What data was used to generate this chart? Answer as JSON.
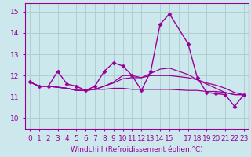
{
  "background_color": "#cce8ec",
  "grid_color": "#aacccc",
  "line_color": "#990099",
  "xlabel": "Windchill (Refroidissement éolien,°C)",
  "ylim": [
    9.5,
    15.4
  ],
  "xlim": [
    -0.5,
    23.5
  ],
  "yticks": [
    10,
    11,
    12,
    13,
    14,
    15
  ],
  "xtick_vals": [
    0,
    1,
    2,
    3,
    4,
    5,
    6,
    7,
    8,
    9,
    10,
    11,
    12,
    13,
    14,
    15,
    17,
    18,
    19,
    20,
    21,
    22,
    23
  ],
  "xtick_labels": [
    "0",
    "1",
    "2",
    "3",
    "4",
    "5",
    "6",
    "7",
    "8",
    "9",
    "10",
    "11",
    "12",
    "13",
    "14",
    "15",
    "17",
    "18",
    "19",
    "20",
    "21",
    "22",
    "23"
  ],
  "series": [
    {
      "x": [
        0,
        1,
        2,
        3,
        4,
        5,
        6,
        7,
        8,
        9,
        10,
        11,
        12,
        13,
        14,
        15,
        17,
        18,
        19,
        20,
        21,
        22,
        23
      ],
      "y": [
        11.7,
        11.5,
        11.5,
        12.2,
        11.6,
        11.5,
        11.3,
        11.5,
        12.2,
        12.6,
        12.45,
        12.0,
        11.3,
        12.2,
        14.4,
        14.9,
        13.5,
        11.9,
        11.2,
        11.15,
        11.1,
        10.55,
        11.1
      ],
      "marker": "D",
      "markersize": 2.5,
      "linewidth": 1.0
    },
    {
      "x": [
        0,
        1,
        2,
        3,
        4,
        5,
        6,
        7,
        8,
        9,
        10,
        11,
        12,
        13,
        14,
        15,
        17,
        18,
        19,
        20,
        21,
        22,
        23
      ],
      "y": [
        11.7,
        11.5,
        11.5,
        11.45,
        11.4,
        11.3,
        11.3,
        11.35,
        11.35,
        11.4,
        11.4,
        11.35,
        11.35,
        11.35,
        11.35,
        11.35,
        11.3,
        11.3,
        11.25,
        11.25,
        11.2,
        11.1,
        11.1
      ],
      "marker": null,
      "linewidth": 0.9
    },
    {
      "x": [
        0,
        1,
        2,
        3,
        4,
        5,
        6,
        7,
        8,
        9,
        10,
        11,
        12,
        13,
        14,
        15,
        17,
        18,
        19,
        20,
        21,
        22,
        23
      ],
      "y": [
        11.7,
        11.5,
        11.5,
        11.45,
        11.4,
        11.3,
        11.3,
        11.35,
        11.5,
        11.65,
        11.85,
        11.9,
        11.9,
        12.0,
        12.0,
        12.0,
        11.9,
        11.8,
        11.65,
        11.55,
        11.4,
        11.2,
        11.1
      ],
      "marker": null,
      "linewidth": 0.9
    },
    {
      "x": [
        0,
        1,
        2,
        3,
        4,
        5,
        6,
        7,
        8,
        9,
        10,
        11,
        12,
        13,
        14,
        15,
        17,
        18,
        19,
        20,
        21,
        22,
        23
      ],
      "y": [
        11.7,
        11.5,
        11.5,
        11.45,
        11.4,
        11.3,
        11.3,
        11.35,
        11.5,
        11.7,
        12.0,
        12.0,
        11.9,
        12.1,
        12.3,
        12.35,
        12.05,
        11.8,
        11.6,
        11.4,
        11.2,
        11.1,
        11.1
      ],
      "marker": null,
      "linewidth": 0.9
    }
  ],
  "xlabel_fontsize": 6.5,
  "tick_fontsize": 6.5
}
